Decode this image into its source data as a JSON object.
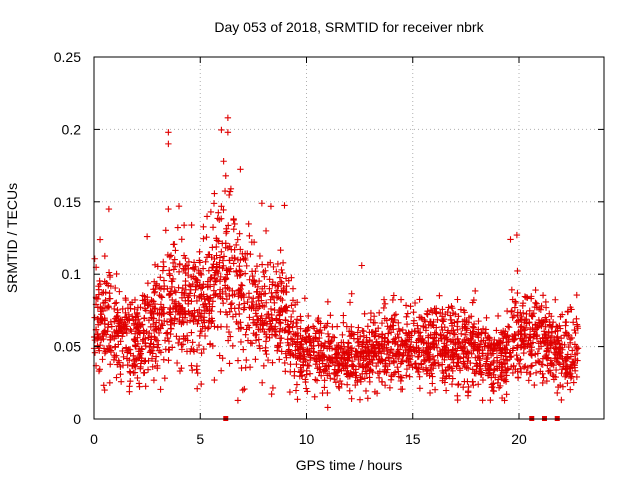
{
  "colors": {
    "series": "#e00000",
    "grid": "#b0b0b0",
    "axis": "#000000"
  },
  "chart_data": {
    "type": "scatter",
    "title": "Day 053 of 2018, SRMTID for receiver nbrk",
    "xlabel": "GPS time / hours",
    "ylabel": "SRMTID / TECUs",
    "xlim": [
      0,
      24
    ],
    "ylim": [
      0,
      0.25
    ],
    "xticks": [
      0,
      5,
      10,
      15,
      20
    ],
    "xtick_labels": [
      "0",
      "5",
      "10",
      "15",
      "20"
    ],
    "yticks": [
      0,
      0.05,
      0.1,
      0.15,
      0.2,
      0.25
    ],
    "ytick_labels": [
      "0",
      "0.05",
      "0.1",
      "0.15",
      "0.2",
      "0.25"
    ],
    "grid": true,
    "marker": "plus",
    "envelope_description": "Mean SRMTID vs GPS time: ~0.07 early, peaks near 0.10 around 6 h, declines to ~0.04-0.05 after 9.5 h",
    "envelope": {
      "x": [
        0,
        1,
        2,
        3,
        3.5,
        4,
        5,
        6,
        6.5,
        7,
        8,
        9,
        9.5,
        10,
        12,
        14,
        16,
        18,
        19,
        20,
        21,
        22,
        22.8
      ],
      "y": [
        0.07,
        0.06,
        0.055,
        0.065,
        0.085,
        0.08,
        0.075,
        0.1,
        0.1,
        0.085,
        0.075,
        0.07,
        0.05,
        0.045,
        0.042,
        0.048,
        0.05,
        0.05,
        0.04,
        0.06,
        0.055,
        0.045,
        0.048
      ]
    },
    "notable_points": [
      {
        "x": 6.3,
        "y": 0.208
      },
      {
        "x": 6.3,
        "y": 0.198
      },
      {
        "x": 3.5,
        "y": 0.198
      },
      {
        "x": 3.5,
        "y": 0.19
      },
      {
        "x": 6.1,
        "y": 0.178
      },
      {
        "x": 0.7,
        "y": 0.145
      },
      {
        "x": 7.9,
        "y": 0.149
      },
      {
        "x": 4.0,
        "y": 0.147
      },
      {
        "x": 3.5,
        "y": 0.145
      },
      {
        "x": 5.5,
        "y": 0.143
      },
      {
        "x": 2.5,
        "y": 0.126
      },
      {
        "x": 19.9,
        "y": 0.127
      },
      {
        "x": 19.6,
        "y": 0.124
      },
      {
        "x": 12.6,
        "y": 0.106
      },
      {
        "x": 0.5,
        "y": 0.02
      },
      {
        "x": 7.0,
        "y": 0.02
      },
      {
        "x": 11.0,
        "y": 0.008
      },
      {
        "x": 21.8,
        "y": 0.018
      },
      {
        "x": 17.1,
        "y": 0.016
      }
    ],
    "zero_markers_x": [
      6.2,
      20.6,
      21.2,
      21.8
    ]
  }
}
